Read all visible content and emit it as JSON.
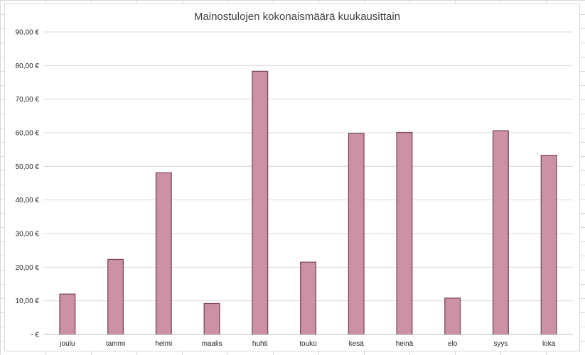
{
  "chart_data": {
    "type": "bar",
    "title": "Mainostulojen kokonaismäärä kuukausittain",
    "xlabel": "",
    "ylabel": "",
    "categories": [
      "joulu",
      "tammi",
      "helmi",
      "maalis",
      "huhti",
      "touko",
      "kesä",
      "heinä",
      "elo",
      "syys",
      "loka"
    ],
    "values": [
      12.0,
      22.3,
      48.1,
      9.2,
      78.3,
      21.5,
      59.8,
      60.1,
      10.8,
      60.6,
      53.3
    ],
    "ylim": [
      0,
      90
    ],
    "y_ticks": [
      0,
      10,
      20,
      30,
      40,
      50,
      60,
      70,
      80,
      90
    ],
    "y_tick_labels": [
      "-  €",
      "10,00 €",
      "20,00 €",
      "30,00 €",
      "40,00 €",
      "50,00 €",
      "60,00 €",
      "70,00 €",
      "80,00 €",
      "90,00 €"
    ],
    "grid": true,
    "legend": "none",
    "bar_fill": "#cd91a6",
    "bar_stroke": "#7a4a5e"
  }
}
